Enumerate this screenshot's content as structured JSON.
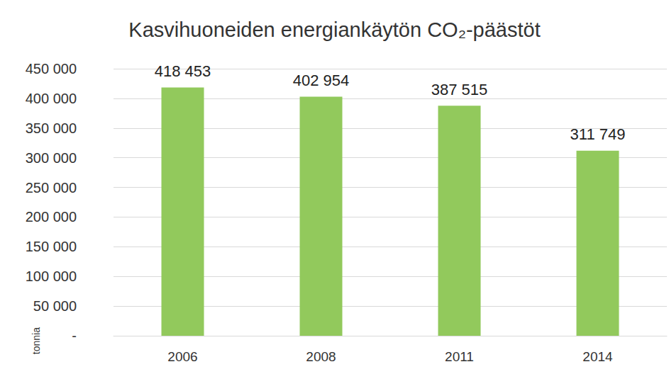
{
  "chart_data": {
    "type": "bar",
    "title": "Kasvihuoneiden energiankäytön CO₂-päästöt",
    "ylabel": "tonnia",
    "categories": [
      "2006",
      "2008",
      "2011",
      "2014"
    ],
    "values": [
      418453,
      402954,
      387515,
      311749
    ],
    "value_labels": [
      "418 453",
      "402 954",
      "387 515",
      "311 749"
    ],
    "color": "#92c95c",
    "ylim": [
      0,
      450000
    ],
    "yticks": [
      {
        "value": 0,
        "label": "-"
      },
      {
        "value": 50000,
        "label": "50 000"
      },
      {
        "value": 100000,
        "label": "100 000"
      },
      {
        "value": 150000,
        "label": "150 000"
      },
      {
        "value": 200000,
        "label": "200 000"
      },
      {
        "value": 250000,
        "label": "250 000"
      },
      {
        "value": 300000,
        "label": "300 000"
      },
      {
        "value": 350000,
        "label": "350 000"
      },
      {
        "value": 400000,
        "label": "400 000"
      },
      {
        "value": 450000,
        "label": "450 000"
      }
    ],
    "grid": true,
    "data_labels": true
  }
}
